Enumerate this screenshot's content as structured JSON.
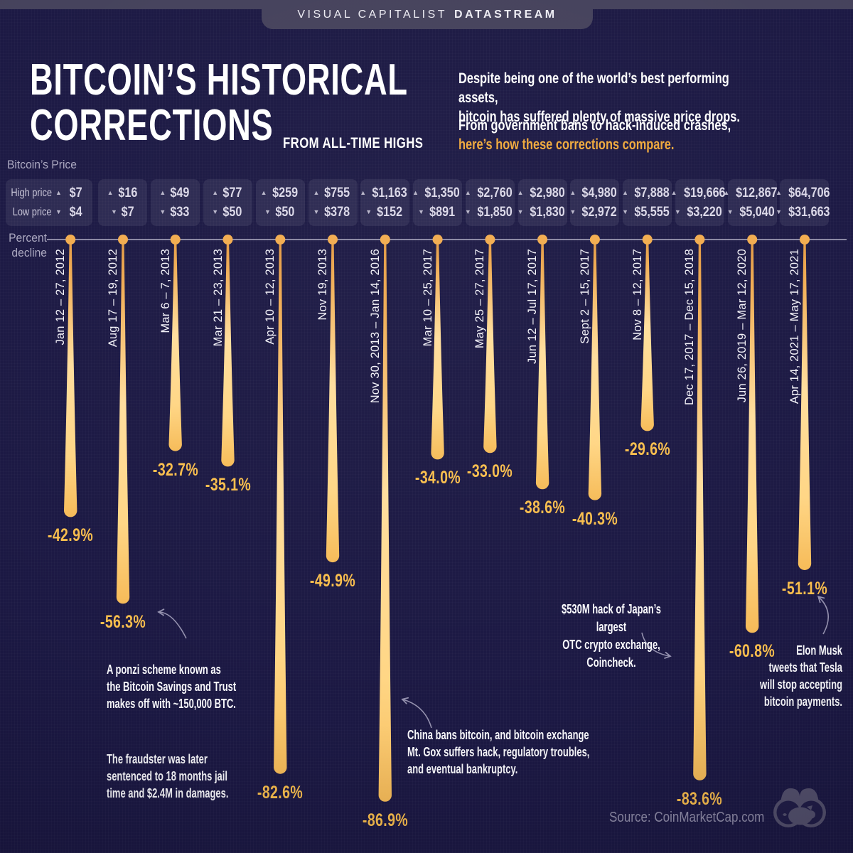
{
  "banner": {
    "brand": "VISUAL CAPITALIST",
    "product": "DATASTREAM"
  },
  "header": {
    "title_line1": "BITCOIN’S HISTORICAL",
    "title_line2": "CORRECTIONS",
    "title_suffix": "FROM ALL-TIME HIGHS",
    "intro1": "Despite being one of the world’s best performing assets,\nbitcoin has suffered plenty of massive price drops.",
    "intro2_line1": "From government bans to hack-induced crashes,",
    "intro2_line2": "here’s how these corrections compare."
  },
  "price_panel": {
    "title": "Bitcoin’s Price",
    "high_label": "High price",
    "low_label": "Low price",
    "up_icon": "▲",
    "down_icon": "▼"
  },
  "axis": {
    "label": "Percent\ndecline"
  },
  "chart_data": {
    "type": "bar",
    "title": "Bitcoin’s Historical Corrections from All-Time Highs",
    "ylabel": "Percent decline",
    "ylim": [
      -90,
      0
    ],
    "legend_position": "none",
    "grid": false,
    "categories": [
      "Jan 12 – 27, 2012",
      "Aug 17 – 19, 2012",
      "Mar 6 – 7, 2013",
      "Mar 21 – 23, 2013",
      "Apr 10 – 12, 2013",
      "Nov 19, 2013",
      "Nov 30, 2013 – Jan 14, 2016",
      "Mar 10 – 25, 2017",
      "May 25 – 27, 2017",
      "Jun 12 – Jul 17, 2017",
      "Sept 2 – 15, 2017",
      "Nov 8 – 12, 2017",
      "Dec 17, 2017 – Dec 15, 2018",
      "Jun 26, 2019 – Mar 12, 2020",
      "Apr 14, 2021 – May 17, 2021"
    ],
    "series": [
      {
        "name": "Percent decline",
        "values": [
          -42.9,
          -56.3,
          -32.7,
          -35.1,
          -82.6,
          -49.9,
          -86.9,
          -34.0,
          -33.0,
          -38.6,
          -40.3,
          -29.6,
          -83.6,
          -60.8,
          -51.1
        ]
      },
      {
        "name": "High price (USD)",
        "values": [
          7,
          16,
          49,
          77,
          259,
          755,
          1163,
          1350,
          2760,
          2980,
          4980,
          7888,
          19666,
          12867,
          64706
        ]
      },
      {
        "name": "Low price (USD)",
        "values": [
          4,
          7,
          33,
          50,
          50,
          378,
          152,
          891,
          1850,
          1830,
          2972,
          5555,
          3220,
          5040,
          31663
        ]
      }
    ],
    "value_labels": [
      "-42.9%",
      "-56.3%",
      "-32.7%",
      "-35.1%",
      "-82.6%",
      "-49.9%",
      "-86.9%",
      "-34.0%",
      "-33.0%",
      "-38.6%",
      "-40.3%",
      "-29.6%",
      "-83.6%",
      "-60.8%",
      "-51.1%"
    ],
    "high_labels": [
      "$7",
      "$16",
      "$49",
      "$77",
      "$259",
      "$755",
      "$1,163",
      "$1,350",
      "$2,760",
      "$2,980",
      "$4,980",
      "$7,888",
      "$19,666",
      "$12,867",
      "$64,706"
    ],
    "low_labels": [
      "$4",
      "$7",
      "$33",
      "$50",
      "$50",
      "$378",
      "$152",
      "$891",
      "$1,850",
      "$1,830",
      "$2,972",
      "$5,555",
      "$3,220",
      "$5,040",
      "$31,663"
    ]
  },
  "annotations": [
    {
      "text1": "A ponzi scheme known as\nthe Bitcoin Savings and Trust\nmakes off with ~150,000 BTC.",
      "text2": "The fraudster was later\nsentenced to 18 months jail\ntime and $2.4M in damages."
    },
    {
      "text1": "China bans bitcoin, and bitcoin exchange\nMt. Gox suffers hack, regulatory troubles,\nand eventual bankruptcy."
    },
    {
      "text1": "$530M hack of Japan’s largest\nOTC crypto exchange, Coincheck."
    },
    {
      "text1": "Elon Musk\ntweets that Tesla\nwill stop accepting\nbitcoin payments."
    }
  ],
  "footer": {
    "source": "Source: CoinMarketCap.com"
  },
  "colors": {
    "background": "#1B1843",
    "banner_tab": "#45425C",
    "accent_gold": "#F9BE4D",
    "highlight_orange": "#F0A93C",
    "drop_top": "#E39A44",
    "drop_mid": "#FFDE9D",
    "drop_bottom": "#F6BB58",
    "dot": "#F2AC4F",
    "box_text": "#DBD8E8",
    "muted_label": "#ABA8C0",
    "source_text": "#918EA9",
    "arrow": "#9B98B4"
  }
}
